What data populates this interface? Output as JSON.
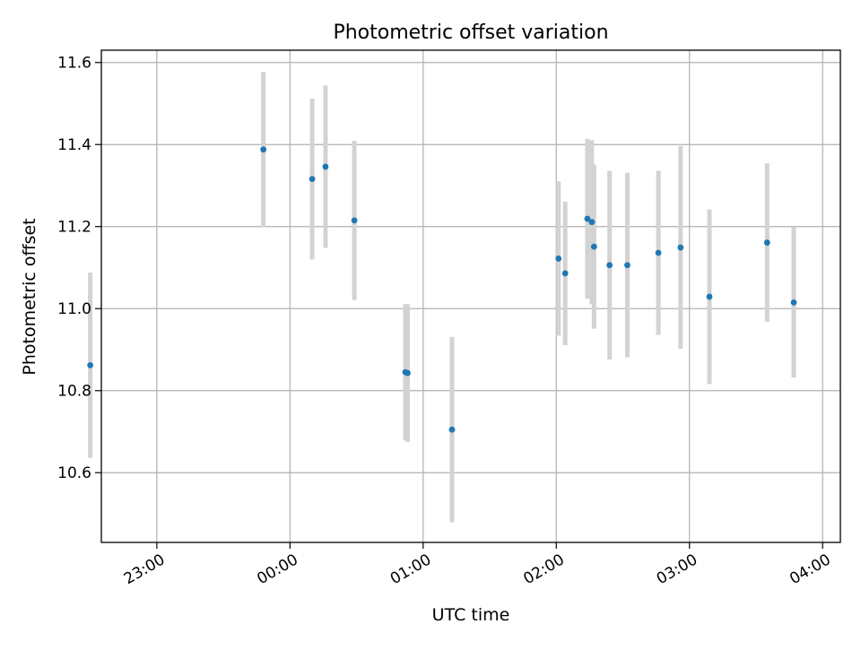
{
  "colors": {
    "point": "#1f77b4",
    "errorbar": "#d3d3d3",
    "grid": "#b0b0b0",
    "axis": "#000000"
  },
  "chart_data": {
    "type": "scatter",
    "title": "Photometric offset variation",
    "xlabel": "UTC time",
    "ylabel": "Photometric offset",
    "xlim": [
      "22:35",
      "04:08"
    ],
    "ylim": [
      10.43,
      11.63
    ],
    "grid": true,
    "x_ticks": [
      "23:00",
      "00:00",
      "01:00",
      "02:00",
      "03:00",
      "04:00"
    ],
    "y_ticks": [
      "10.6",
      "10.8",
      "11.0",
      "11.2",
      "11.4",
      "11.6"
    ],
    "series": [
      {
        "points": [
          {
            "x": "22:30",
            "y": 10.862,
            "yerr": 0.226
          },
          {
            "x": "23:48",
            "y": 11.388,
            "yerr": 0.189
          },
          {
            "x": "00:10",
            "y": 11.316,
            "yerr": 0.196
          },
          {
            "x": "00:16",
            "y": 11.346,
            "yerr": 0.198
          },
          {
            "x": "00:29",
            "y": 11.215,
            "yerr": 0.194
          },
          {
            "x": "00:52",
            "y": 10.845,
            "yerr": 0.166
          },
          {
            "x": "00:53",
            "y": 10.843,
            "yerr": 0.168
          },
          {
            "x": "01:13",
            "y": 10.705,
            "yerr": 0.226
          },
          {
            "x": "02:01",
            "y": 11.122,
            "yerr": 0.188
          },
          {
            "x": "02:04",
            "y": 11.086,
            "yerr": 0.175
          },
          {
            "x": "02:14",
            "y": 11.219,
            "yerr": 0.195
          },
          {
            "x": "02:16",
            "y": 11.211,
            "yerr": 0.2
          },
          {
            "x": "02:17",
            "y": 11.151,
            "yerr": 0.2
          },
          {
            "x": "02:24",
            "y": 11.106,
            "yerr": 0.23
          },
          {
            "x": "02:32",
            "y": 11.106,
            "yerr": 0.225
          },
          {
            "x": "02:46",
            "y": 11.136,
            "yerr": 0.2
          },
          {
            "x": "02:56",
            "y": 11.149,
            "yerr": 0.247
          },
          {
            "x": "03:09",
            "y": 11.029,
            "yerr": 0.213
          },
          {
            "x": "03:35",
            "y": 11.161,
            "yerr": 0.193
          },
          {
            "x": "03:47",
            "y": 11.015,
            "yerr": 0.183
          }
        ]
      }
    ]
  }
}
